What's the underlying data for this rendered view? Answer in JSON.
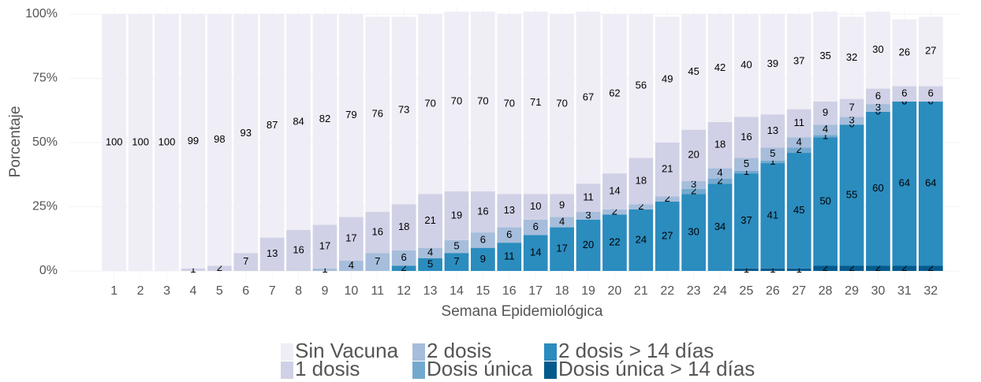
{
  "chart_data": {
    "type": "stacked_bar",
    "x_label": "Semana Epidemiológica",
    "y_label": "Porcentaje",
    "categories": [
      "1",
      "2",
      "3",
      "4",
      "5",
      "6",
      "7",
      "8",
      "9",
      "10",
      "11",
      "12",
      "13",
      "14",
      "15",
      "16",
      "17",
      "18",
      "19",
      "20",
      "21",
      "22",
      "23",
      "24",
      "25",
      "26",
      "27",
      "28",
      "29",
      "30",
      "31",
      "32"
    ],
    "ylim": [
      0,
      100
    ],
    "yticks": [
      {
        "value": 0,
        "label": "0%"
      },
      {
        "value": 25,
        "label": "25%"
      },
      {
        "value": 50,
        "label": "50%"
      },
      {
        "value": 75,
        "label": "75%"
      },
      {
        "value": 100,
        "label": "100%"
      }
    ],
    "grid": true,
    "legend": "bottom",
    "series": [
      {
        "name": "Sin Vacuna",
        "color": "#efedf5",
        "values": [
          100,
          100,
          100,
          99,
          98,
          93,
          87,
          84,
          82,
          79,
          76,
          73,
          70,
          70,
          70,
          70,
          71,
          70,
          67,
          62,
          56,
          49,
          45,
          42,
          40,
          39,
          37,
          35,
          32,
          30,
          26,
          27
        ]
      },
      {
        "name": "1 dosis",
        "color": "#d0d1e6",
        "values": [
          0,
          0,
          0,
          1,
          2,
          7,
          13,
          16,
          17,
          17,
          16,
          18,
          21,
          19,
          16,
          13,
          10,
          9,
          11,
          14,
          18,
          21,
          20,
          18,
          16,
          13,
          11,
          9,
          7,
          6,
          6,
          6
        ]
      },
      {
        "name": "2 dosis",
        "color": "#a6bddb",
        "values": [
          0,
          0,
          0,
          0,
          0,
          0,
          0,
          0,
          1,
          4,
          7,
          6,
          4,
          5,
          6,
          6,
          6,
          4,
          3,
          2,
          2,
          2,
          3,
          4,
          5,
          5,
          4,
          4,
          3,
          3,
          0,
          0
        ],
        "value_labels": [
          null,
          null,
          null,
          null,
          null,
          null,
          null,
          null,
          "1",
          "4",
          "7",
          "6",
          "4",
          "5",
          "6",
          "6",
          "6",
          "4",
          "3",
          "2",
          "2",
          "2",
          "3",
          "4",
          "5",
          "5",
          "4",
          "4",
          "3",
          "3",
          "0",
          "0"
        ]
      },
      {
        "name": "Dosis única",
        "color": "#74a9cf",
        "values": [
          0,
          0,
          0,
          0,
          0,
          0,
          0,
          0,
          0,
          0,
          0,
          0,
          0,
          0,
          0,
          0,
          0,
          0,
          0,
          0,
          0,
          0,
          2,
          2,
          1,
          1,
          2,
          1,
          0,
          0,
          0,
          0
        ],
        "value_labels": [
          null,
          null,
          null,
          null,
          null,
          null,
          null,
          null,
          null,
          null,
          null,
          null,
          null,
          null,
          null,
          null,
          null,
          null,
          null,
          null,
          null,
          null,
          "2",
          "2",
          "1",
          "1",
          "2",
          "1",
          "0",
          "0",
          "0",
          null
        ]
      },
      {
        "name": "2 dosis > 14 días",
        "color": "#2b8cbe",
        "values": [
          0,
          0,
          0,
          0,
          0,
          0,
          0,
          0,
          0,
          0,
          0,
          2,
          5,
          7,
          9,
          11,
          14,
          17,
          20,
          22,
          24,
          27,
          30,
          34,
          37,
          41,
          45,
          50,
          55,
          60,
          64,
          64
        ]
      },
      {
        "name": "Dosis única > 14 días",
        "color": "#045a8d",
        "values": [
          0,
          0,
          0,
          0,
          0,
          0,
          0,
          0,
          0,
          0,
          0,
          0,
          0,
          0,
          0,
          0,
          0,
          0,
          0,
          0,
          0,
          0,
          0,
          0,
          1,
          1,
          1,
          2,
          2,
          2,
          2,
          2
        ]
      }
    ]
  }
}
